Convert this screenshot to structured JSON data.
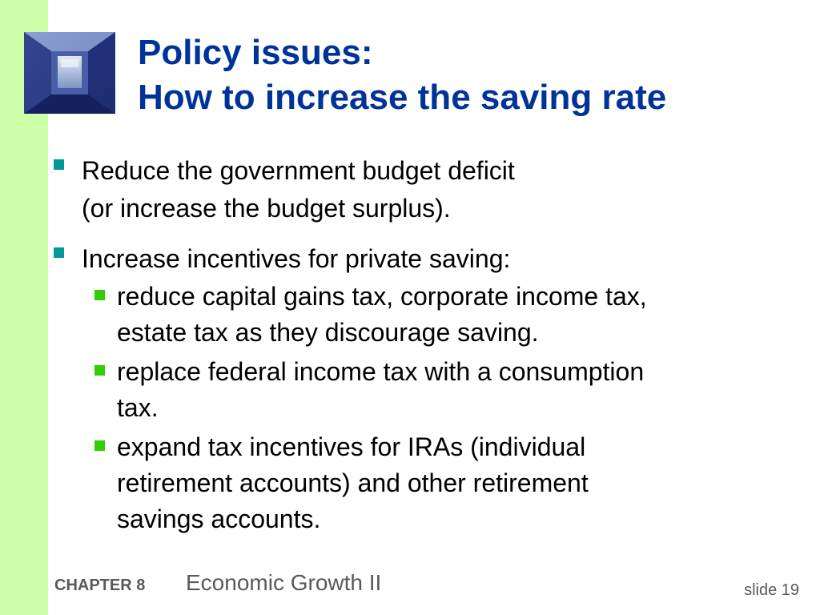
{
  "title": {
    "line1": "Policy issues:",
    "line2": "How to increase the saving rate"
  },
  "bullets": [
    {
      "lines": [
        "Reduce the government budget deficit",
        "(or increase the budget surplus)."
      ]
    },
    {
      "lines": [
        "Increase incentives for private saving:"
      ],
      "subbullets": [
        {
          "lines": [
            "reduce capital gains tax, corporate income tax,",
            "estate tax as they discourage saving."
          ]
        },
        {
          "lines": [
            "replace federal income tax with a consumption",
            "tax."
          ]
        },
        {
          "lines": [
            "expand tax incentives for IRAs (individual",
            "retirement accounts) and other retirement",
            "savings accounts."
          ]
        }
      ]
    }
  ],
  "footer": {
    "chapter": "CHAPTER 8",
    "chapter_title": "Economic Growth II",
    "slide": "slide 19"
  },
  "colors": {
    "title": "#003399",
    "stripe": "#ccffa8",
    "bullet_level1": "#009999",
    "bullet_level2": "#33cc00"
  }
}
